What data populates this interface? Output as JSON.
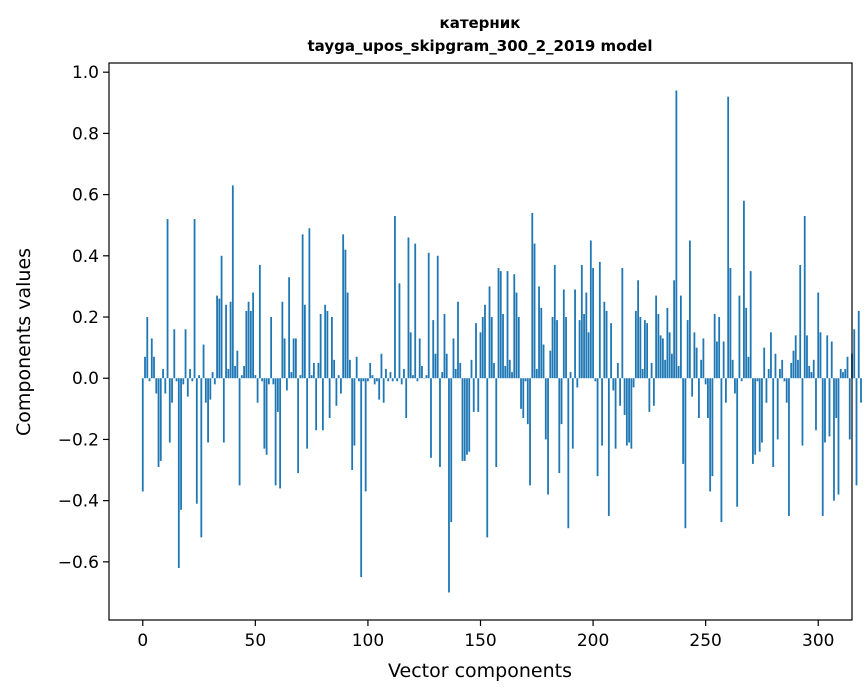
{
  "chart_data": {
    "type": "bar",
    "title": "катерник",
    "subtitle": "tayga_upos_skipgram_300_2_2019 model",
    "xlabel": "Vector components",
    "ylabel": "Components values",
    "xlim": [
      -15,
      315
    ],
    "ylim": [
      -0.79,
      1.03
    ],
    "xticks": [
      0,
      50,
      100,
      150,
      200,
      250,
      300
    ],
    "xtick_labels": [
      "0",
      "50",
      "100",
      "150",
      "200",
      "250",
      "300"
    ],
    "yticks": [
      -0.6,
      -0.4,
      -0.2,
      0.0,
      0.2,
      0.4,
      0.6,
      0.8,
      1.0
    ],
    "ytick_labels": [
      "−0.6",
      "−0.4",
      "−0.2",
      "0.0",
      "0.2",
      "0.4",
      "0.6",
      "0.8",
      "1.0"
    ],
    "grid": false,
    "bar_color": "#1f77b4",
    "values": [
      -0.37,
      0.07,
      0.2,
      -0.01,
      0.13,
      0.07,
      -0.05,
      -0.29,
      -0.27,
      0.03,
      -0.05,
      0.52,
      -0.21,
      -0.08,
      0.16,
      -0.01,
      -0.62,
      -0.43,
      -0.02,
      0.16,
      -0.06,
      0.03,
      -0.01,
      0.52,
      -0.41,
      0.01,
      -0.52,
      0.11,
      -0.08,
      -0.21,
      -0.07,
      0.02,
      -0.02,
      0.27,
      0.26,
      0.4,
      -0.21,
      0.24,
      0.03,
      0.25,
      0.63,
      0.04,
      0.09,
      -0.35,
      0.01,
      0.04,
      0.22,
      0.25,
      0.22,
      0.28,
      0.01,
      -0.08,
      0.37,
      -0.01,
      -0.23,
      -0.25,
      -0.02,
      0.2,
      -0.02,
      -0.35,
      -0.11,
      -0.36,
      0.25,
      0.13,
      -0.04,
      0.33,
      0.02,
      0.13,
      0.13,
      -0.31,
      0.01,
      0.47,
      0.24,
      -0.23,
      0.49,
      0.01,
      0.05,
      -0.17,
      0.05,
      0.21,
      -0.17,
      0.24,
      0.22,
      -0.13,
      0.2,
      0.06,
      -0.09,
      0.01,
      -0.05,
      0.47,
      0.42,
      0.28,
      0.06,
      -0.3,
      -0.22,
      0.07,
      -0.01,
      -0.65,
      -0.01,
      -0.37,
      -0.01,
      0.05,
      0.01,
      -0.02,
      -0.01,
      -0.07,
      0.08,
      -0.08,
      0.03,
      -0.01,
      0.02,
      -0.01,
      0.53,
      -0.01,
      0.31,
      -0.02,
      0.03,
      -0.13,
      0.46,
      0.15,
      0.01,
      0.44,
      -0.01,
      0.13,
      0.04,
      0.0,
      0.01,
      0.41,
      -0.26,
      0.19,
      0.08,
      0.4,
      -0.29,
      0.02,
      0.21,
      0.08,
      -0.7,
      -0.47,
      0.13,
      0.03,
      0.25,
      0.05,
      -0.27,
      -0.27,
      -0.25,
      -0.24,
      0.06,
      -0.11,
      0.18,
      -0.11,
      0.15,
      0.2,
      0.24,
      -0.52,
      0.3,
      0.2,
      0.05,
      -0.29,
      0.36,
      0.35,
      0.21,
      0.04,
      0.35,
      0.06,
      0.02,
      0.34,
      0.28,
      0.2,
      -0.1,
      -0.13,
      -0.01,
      -0.15,
      -0.35,
      0.54,
      0.44,
      0.03,
      0.3,
      0.23,
      0.11,
      -0.2,
      -0.38,
      0.09,
      0.2,
      0.37,
      0.19,
      -0.31,
      -0.15,
      0.29,
      0.2,
      -0.49,
      0.02,
      -0.23,
      0.29,
      -0.03,
      0.19,
      0.37,
      0.21,
      0.28,
      0.15,
      0.45,
      0.36,
      -0.01,
      -0.32,
      0.38,
      -0.22,
      0.25,
      0.22,
      -0.45,
      0.18,
      -0.04,
      -0.23,
      0.05,
      -0.09,
      0.36,
      -0.12,
      -0.22,
      -0.21,
      -0.23,
      -0.03,
      0.22,
      0.32,
      0.2,
      0.03,
      0.19,
      0.18,
      -0.11,
      0.05,
      -0.09,
      0.27,
      0.21,
      0.14,
      0.13,
      0.06,
      0.23,
      0.15,
      0.08,
      0.32,
      0.94,
      0.04,
      0.27,
      -0.28,
      -0.49,
      0.19,
      0.45,
      -0.06,
      0.15,
      0.1,
      -0.13,
      0.06,
      0.13,
      -0.02,
      -0.13,
      -0.37,
      -0.32,
      0.21,
      0.12,
      0.2,
      -0.47,
      0.12,
      -0.08,
      0.92,
      0.36,
      0.06,
      -0.05,
      -0.42,
      0.27,
      -0.01,
      0.58,
      0.23,
      0.07,
      0.35,
      -0.28,
      -0.25,
      -0.01,
      -0.24,
      -0.21,
      0.1,
      -0.08,
      0.03,
      0.15,
      -0.29,
      0.08,
      -0.2,
      0.03,
      0.06,
      -0.01,
      -0.08,
      -0.45,
      0.05,
      0.09,
      0.14,
      0.06,
      0.37,
      -0.22,
      0.53,
      0.14,
      0.04,
      0.02,
      0.06,
      -0.17,
      0.28,
      0.15,
      -0.45,
      -0.21,
      0.14,
      -0.19,
      0.12,
      -0.4,
      -0.13,
      -0.38,
      0.03,
      0.02,
      0.03,
      0.07,
      -0.2,
      0.08,
      0.16,
      -0.35,
      0.22,
      -0.08
    ]
  }
}
